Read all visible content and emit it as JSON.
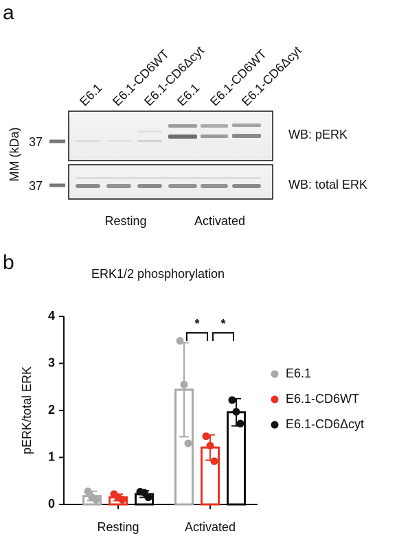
{
  "panels": [
    "a",
    "b"
  ],
  "blot": {
    "lanes": [
      "E6.1",
      "E6.1-CD6WT",
      "E6.1-CD6Δcyt",
      "E6.1",
      "E6.1-CD6WT",
      "E6.1-CD6Δcyt"
    ],
    "mm_label": "MM (kDa)",
    "markers": [
      "37",
      "37"
    ],
    "rows": [
      "WB: pERK",
      "WB: total ERK"
    ],
    "groups": [
      "Resting",
      "Activated"
    ]
  },
  "chart_data": {
    "type": "bar",
    "title": "ERK1/2 phosphorylation",
    "y_label": "pERK/total ERK",
    "categories": [
      "Resting",
      "Activated"
    ],
    "ylim": [
      0,
      4
    ],
    "yticks": [
      0,
      1,
      2,
      3,
      4
    ],
    "legend": "right",
    "series": [
      {
        "name": "E6.1",
        "color": "#a9a9a9",
        "values": [
          0.18,
          2.44
        ],
        "errors": [
          0.1,
          1.0
        ],
        "points": [
          [
            0.28,
            0.15,
            0.1
          ],
          [
            3.48,
            2.55,
            1.3
          ]
        ]
      },
      {
        "name": "E6.1-CD6WT",
        "color": "#ea3320",
        "values": [
          0.15,
          1.21
        ],
        "errors": [
          0.07,
          0.27
        ],
        "points": [
          [
            0.22,
            0.15,
            0.1
          ],
          [
            1.45,
            1.25,
            0.92
          ]
        ]
      },
      {
        "name": "E6.1-CD6Δcyt",
        "color": "#111111",
        "values": [
          0.22,
          1.96
        ],
        "errors": [
          0.07,
          0.29
        ],
        "points": [
          [
            0.27,
            0.25,
            0.15
          ],
          [
            2.22,
            1.97,
            1.72
          ]
        ]
      }
    ],
    "annotations": [
      {
        "text": "*",
        "category": 1,
        "series": [
          0,
          1
        ]
      },
      {
        "text": "*",
        "category": 1,
        "series": [
          1,
          2
        ]
      }
    ]
  }
}
